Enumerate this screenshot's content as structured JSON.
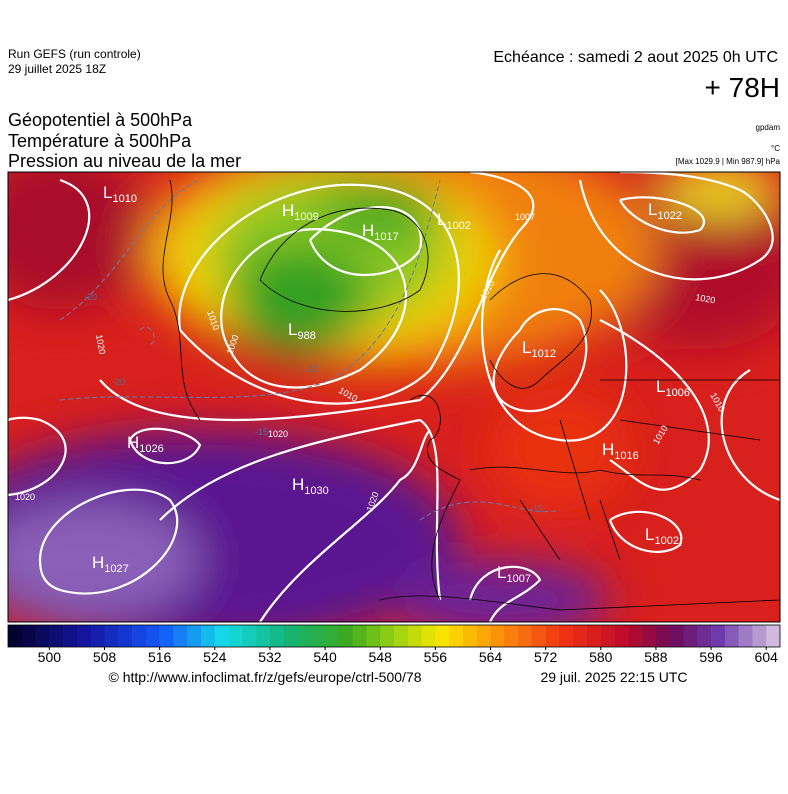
{
  "header": {
    "run": "Run GEFS (run controle)",
    "run_date": "29 juillet 2025 18Z",
    "echeance": "Echéance : samedi 2 aout 2025 0h UTC",
    "lead": "+ 78H"
  },
  "titles": [
    "Géopotentiel à 500hPa",
    "Température à 500hPa",
    "Pression au niveau de la mer"
  ],
  "units": [
    "gpdam",
    "°C",
    "[Max 1029.9 | Min 987.9] hPa"
  ],
  "pressure_centers": [
    {
      "type": "L",
      "value": "1010"
    },
    {
      "type": "H",
      "value": "1009"
    },
    {
      "type": "H",
      "value": "1017"
    },
    {
      "type": "L",
      "value": "1002"
    },
    {
      "type": "L",
      "value": "988"
    },
    {
      "type": "H",
      "value": "1026"
    },
    {
      "type": "H",
      "value": "1030"
    },
    {
      "type": "H",
      "value": "1027"
    },
    {
      "type": "L",
      "value": "1007"
    },
    {
      "type": "L",
      "value": "1012"
    },
    {
      "type": "L",
      "value": "1006"
    },
    {
      "type": "H",
      "value": "1016"
    },
    {
      "type": "L",
      "value": "1002"
    },
    {
      "type": "L",
      "value": "1022"
    }
  ],
  "isobar_labels": [
    "1007",
    "1010",
    "1020",
    "1000",
    "1010",
    "1020",
    "1020",
    "1020",
    "1010",
    "1020",
    "1010",
    "1010"
  ],
  "temperature_labels": [
    "-20",
    "-20",
    "-20",
    "-15",
    "-15"
  ],
  "colorbar": {
    "lim": [
      494,
      606
    ],
    "ticks": [
      500,
      508,
      516,
      524,
      532,
      540,
      548,
      556,
      564,
      572,
      580,
      588,
      596,
      604
    ]
  },
  "footer": {
    "url": "© http://www.infoclimat.fr/z/gefs/europe/ctrl-500/78",
    "timestamp": "29 juil. 2025 22:15 UTC"
  }
}
